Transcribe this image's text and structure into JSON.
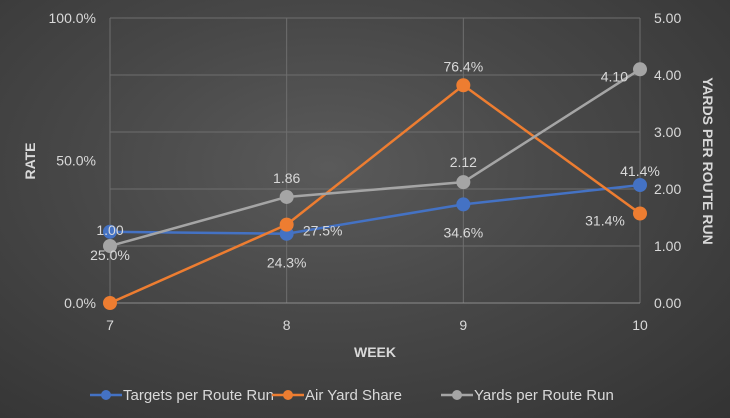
{
  "chart_data": {
    "type": "line",
    "x": [
      7,
      8,
      9,
      10
    ],
    "xlabel": "WEEK",
    "ylabel_left": "RATE",
    "ylabel_right": "YARDS PER ROUTE RUN",
    "x_ticks": [
      "7",
      "8",
      "9",
      "10"
    ],
    "y_left_ticks": [
      "0.0%",
      "50.0%",
      "100.0%"
    ],
    "y_right_ticks": [
      "0.00",
      "1.00",
      "2.00",
      "3.00",
      "4.00",
      "5.00"
    ],
    "ylim_left": [
      0,
      100
    ],
    "ylim_right": [
      0,
      5
    ],
    "grid": true,
    "legend_position": "bottom",
    "series": [
      {
        "name": "Targets per Route Run",
        "axis": "left",
        "color": "#4472c4",
        "values": [
          25.0,
          24.3,
          34.6,
          41.4
        ],
        "labels": [
          "25.0%",
          "24.3%",
          "34.6%",
          "41.4%"
        ]
      },
      {
        "name": "Air Yard Share",
        "axis": "left",
        "color": "#ed7d31",
        "values": [
          0.0,
          27.5,
          76.4,
          31.4
        ],
        "labels": [
          "",
          "27.5%",
          "76.4%",
          "31.4%"
        ]
      },
      {
        "name": "Yards per Route Run",
        "axis": "right",
        "color": "#a5a5a5",
        "values": [
          1.0,
          1.86,
          2.12,
          4.1
        ],
        "labels": [
          "1.00",
          "1.86",
          "2.12",
          "4.10"
        ]
      }
    ]
  }
}
